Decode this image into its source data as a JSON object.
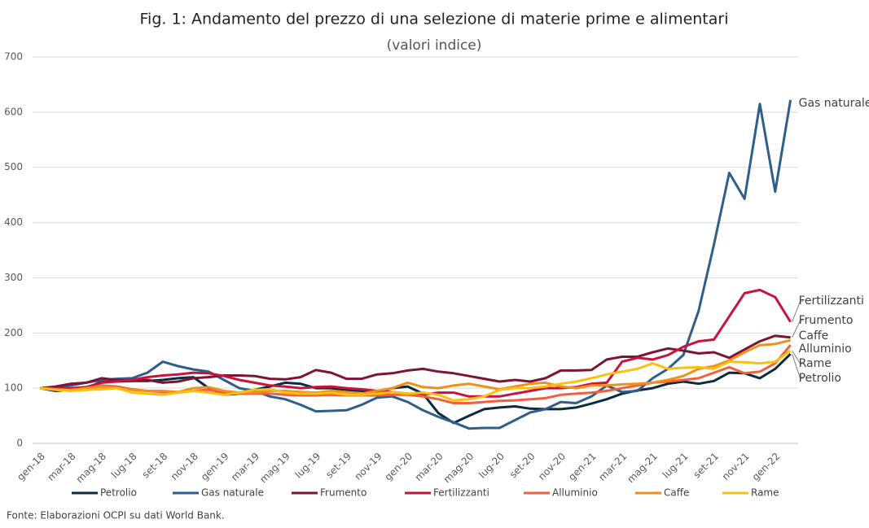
{
  "chart_data": {
    "type": "line",
    "title": "Fig. 1: Andamento del prezzo di una selezione di materie prime e alimentari",
    "subtitle": "(valori indice)",
    "note": "Fonte: Elaborazioni OCPI su dati World Bank.",
    "categories": [
      "gen-18",
      null,
      "mar-18",
      null,
      "mag-18",
      null,
      "lug-18",
      null,
      "set-18",
      null,
      "nov-18",
      null,
      "gen-19",
      null,
      "mar-19",
      null,
      "mag-19",
      null,
      "lug-19",
      null,
      "set-19",
      null,
      "nov-19",
      null,
      "gen-20",
      null,
      "mar-20",
      null,
      "mag-20",
      null,
      "lug-20",
      null,
      "set-20",
      null,
      "nov-20",
      null,
      "gen-21",
      null,
      "mar-21",
      null,
      "mag-21",
      null,
      "lug-21",
      null,
      "set-21",
      null,
      "nov-21",
      null,
      "gen-22",
      null
    ],
    "ylim": [
      0,
      700
    ],
    "yticks": [
      0,
      100,
      200,
      300,
      400,
      500,
      600,
      700
    ],
    "grid": true,
    "series": [
      {
        "name": "Petrolio",
        "color": "#0d2b3e",
        "values": [
          100,
          95,
          97,
          100,
          112,
          112,
          113,
          113,
          115,
          118,
          120,
          100,
          88,
          90,
          97,
          103,
          110,
          108,
          100,
          100,
          97,
          95,
          93,
          100,
          103,
          90,
          55,
          37,
          50,
          62,
          65,
          67,
          63,
          62,
          62,
          65,
          72,
          80,
          90,
          96,
          100,
          108,
          112,
          108,
          113,
          128,
          127,
          118,
          135,
          162
        ]
      },
      {
        "name": "Gas naturale",
        "color": "#2e5e8a",
        "values": [
          100,
          102,
          105,
          110,
          115,
          117,
          118,
          128,
          148,
          140,
          134,
          130,
          115,
          100,
          95,
          85,
          80,
          70,
          58,
          59,
          60,
          70,
          83,
          85,
          75,
          60,
          48,
          38,
          27,
          28,
          28,
          42,
          56,
          62,
          75,
          73,
          85,
          105,
          93,
          95,
          118,
          135,
          160,
          240,
          360,
          490,
          443,
          615,
          456,
          622
        ]
      },
      {
        "name": "Frumento",
        "color": "#7b1535",
        "values": [
          100,
          103,
          108,
          110,
          118,
          115,
          113,
          115,
          110,
          112,
          118,
          120,
          123,
          123,
          122,
          117,
          116,
          120,
          133,
          128,
          117,
          117,
          125,
          127,
          132,
          135,
          130,
          127,
          122,
          117,
          112,
          115,
          112,
          118,
          132,
          132,
          133,
          152,
          157,
          157,
          165,
          172,
          168,
          163,
          165,
          155,
          170,
          185,
          195,
          192
        ]
      },
      {
        "name": "Fertilizzanti",
        "color": "#c8143c",
        "values": [
          100,
          100,
          100,
          102,
          110,
          112,
          115,
          120,
          123,
          125,
          128,
          127,
          122,
          115,
          110,
          105,
          103,
          100,
          102,
          103,
          100,
          98,
          95,
          93,
          90,
          88,
          92,
          92,
          85,
          85,
          85,
          90,
          95,
          100,
          100,
          102,
          108,
          110,
          148,
          155,
          152,
          160,
          175,
          185,
          188,
          230,
          272,
          278,
          265,
          220
        ]
      },
      {
        "name": "Alluminio",
        "color": "#f06040",
        "values": [
          100,
          98,
          95,
          100,
          105,
          103,
          98,
          95,
          93,
          92,
          95,
          97,
          92,
          90,
          90,
          90,
          88,
          87,
          87,
          88,
          87,
          87,
          87,
          88,
          88,
          85,
          80,
          73,
          73,
          75,
          77,
          78,
          80,
          82,
          88,
          90,
          92,
          95,
          100,
          105,
          110,
          112,
          115,
          118,
          128,
          138,
          127,
          130,
          145,
          178
        ]
      },
      {
        "name": "Caffe",
        "color": "#f0901a",
        "values": [
          100,
          98,
          97,
          100,
          103,
          100,
          97,
          95,
          95,
          93,
          100,
          102,
          95,
          92,
          92,
          95,
          95,
          93,
          92,
          95,
          93,
          90,
          95,
          100,
          110,
          102,
          100,
          105,
          108,
          103,
          98,
          103,
          108,
          110,
          103,
          100,
          105,
          105,
          107,
          108,
          110,
          115,
          122,
          135,
          140,
          150,
          165,
          178,
          180,
          187
        ]
      },
      {
        "name": "Rame",
        "color": "#f8c010",
        "values": [
          100,
          97,
          95,
          97,
          98,
          100,
          92,
          90,
          88,
          92,
          95,
          92,
          88,
          92,
          97,
          98,
          92,
          90,
          90,
          92,
          88,
          88,
          90,
          93,
          90,
          92,
          88,
          78,
          80,
          85,
          97,
          100,
          100,
          103,
          108,
          112,
          118,
          125,
          130,
          135,
          145,
          135,
          137,
          138,
          135,
          148,
          147,
          145,
          148,
          168
        ]
      }
    ]
  }
}
